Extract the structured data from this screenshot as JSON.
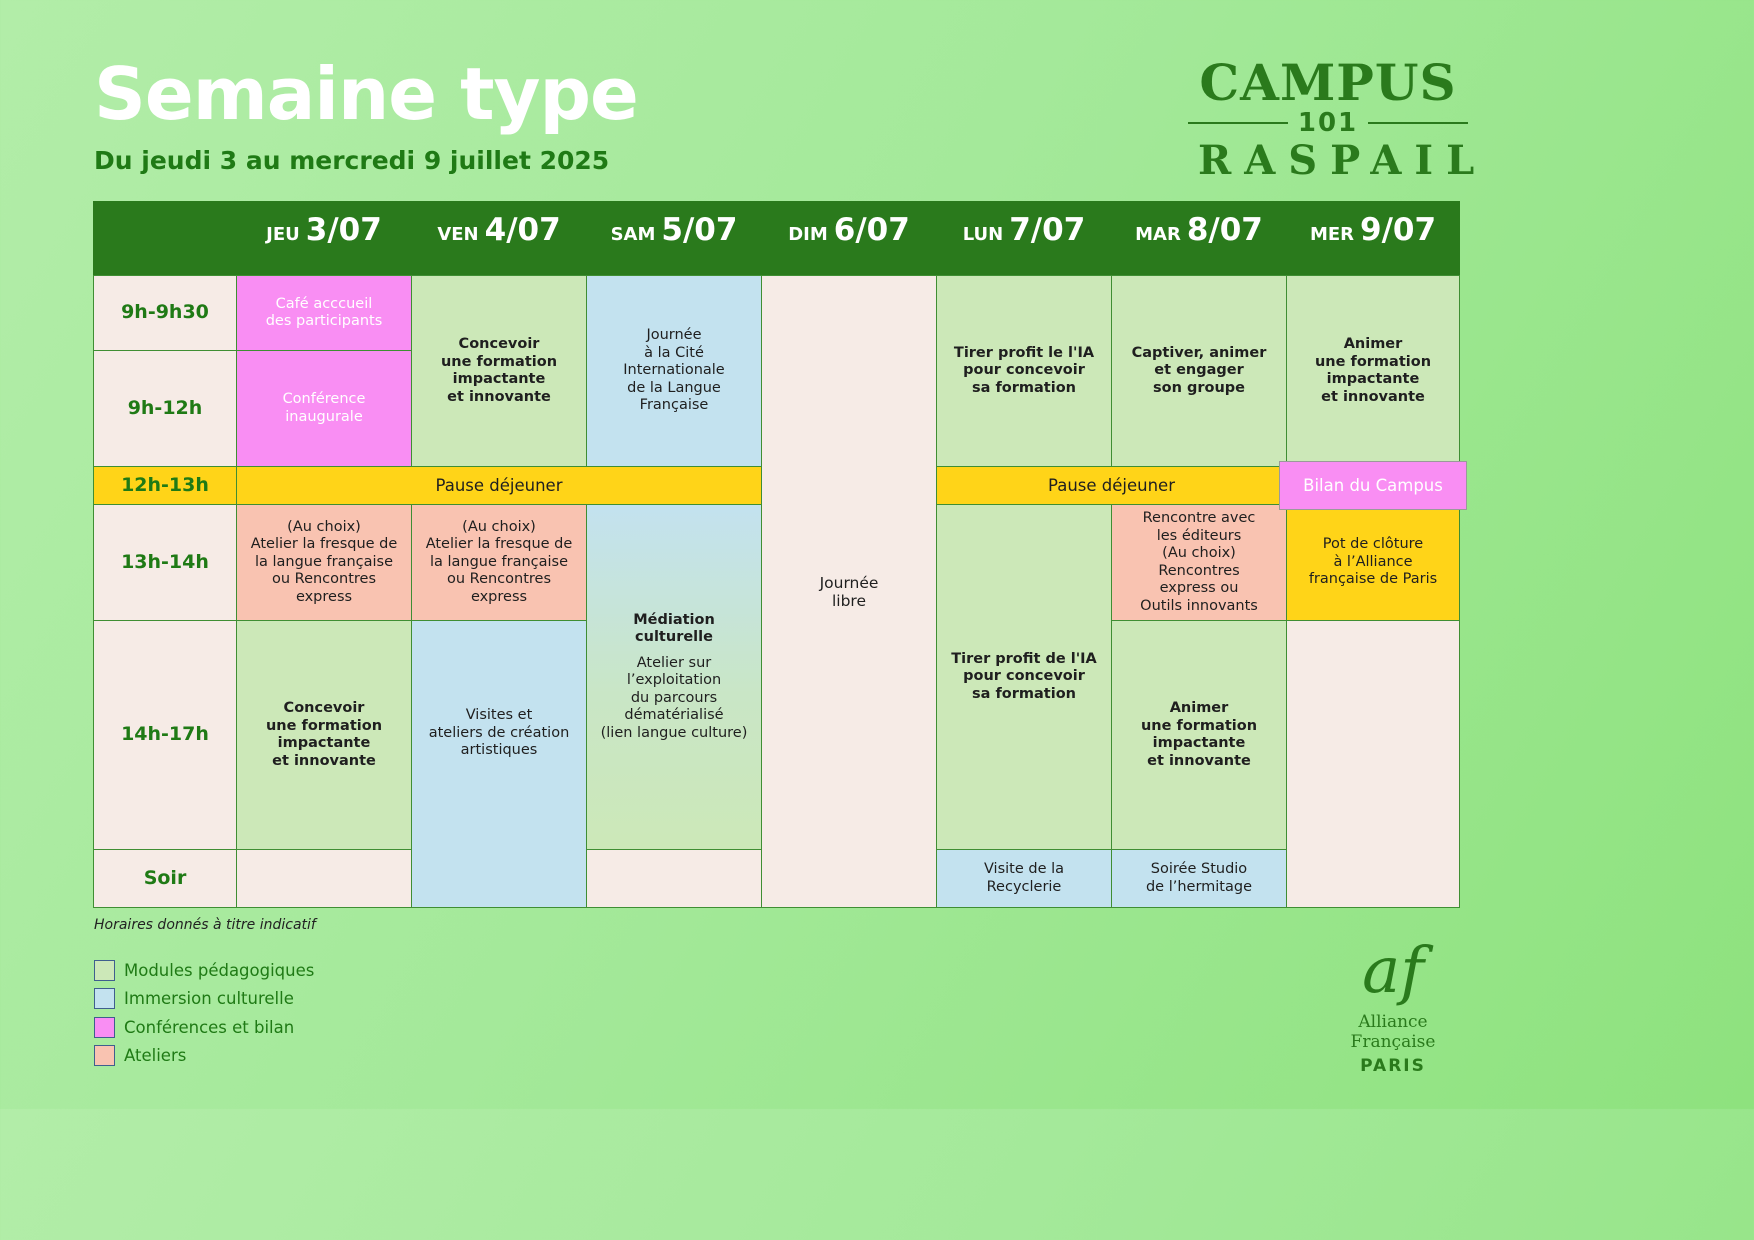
{
  "page": {
    "title": "Semaine type",
    "subtitle": "Du jeudi 3 au mercredi 9 juillet 2025",
    "note": "Horaires donnés à titre indicatif"
  },
  "logo": {
    "line1": "CAMPUS",
    "line2": "101",
    "line3": "RASPAIL"
  },
  "days": [
    {
      "abbr": "JEU",
      "date": "3/07"
    },
    {
      "abbr": "VEN",
      "date": "4/07"
    },
    {
      "abbr": "SAM",
      "date": "5/07"
    },
    {
      "abbr": "DIM",
      "date": "6/07"
    },
    {
      "abbr": "LUN",
      "date": "7/07"
    },
    {
      "abbr": "MAR",
      "date": "8/07"
    },
    {
      "abbr": "MER",
      "date": "9/07"
    }
  ],
  "times": [
    "9h-9h30",
    "9h-12h",
    "12h-13h",
    "13h-14h",
    "14h-17h",
    "Soir"
  ],
  "schedule": {
    "jeu_cafe": "Café acccueil\ndes participants",
    "jeu_conf": "Conférence\ninaugurale",
    "ven_am": "Concevoir\nune formation\nimpactante\net innovante",
    "sam_am": "Journée\nà la Cité\nInternationale\nde la Langue\nFrançaise",
    "dim_all": "Journée\nlibre",
    "lun_am": "Tirer profit le l'IA\npour concevoir\nsa formation",
    "mar_am": "Captiver, animer\net engager\nson groupe",
    "mer_am": "Animer\nune formation\nimpactante\net innovante",
    "pause_left": "Pause déjeuner",
    "pause_right": "Pause déjeuner",
    "bilan": "Bilan du Campus",
    "jeu_1314": "(Au choix)\nAtelier la fresque de\nla langue française\nou Rencontres\nexpress",
    "ven_1314": "(Au choix)\nAtelier la fresque de\nla langue française\nou Rencontres\nexpress",
    "sam_pm_title": "Médiation\nculturelle",
    "sam_pm_text": "Atelier sur\nl’exploitation\ndu parcours\ndématérialisé\n(lien langue culture)",
    "lun_pm": "Tirer profit de l'IA\npour concevoir\nsa formation",
    "mar_1314": "Rencontre avec\nles éditeurs\n(Au choix)\nRencontres\nexpress ou\nOutils innovants",
    "mer_1314": "Pot de clôture\nà l’Alliance\nfrançaise de Paris",
    "jeu_pm": "Concevoir\nune formation\nimpactante\net innovante",
    "ven_pm": "Visites et\nateliers de création\nartistiques",
    "mar_pm": "Animer\nune formation\nimpactante\net innovante",
    "lun_soir": "Visite de la\nRecyclerie",
    "mar_soir": "Soirée Studio\nde l’hermitage"
  },
  "legend": [
    {
      "label": "Modules pédagogiques",
      "color": "#cce8b8"
    },
    {
      "label": "Immersion culturelle",
      "color": "#c3e2ef"
    },
    {
      "label": "Conférences et bilan",
      "color": "#f98ef3"
    },
    {
      "label": "Ateliers",
      "color": "#f9c3b1"
    }
  ],
  "colors": {
    "module": "#cce8b8",
    "immersion": "#c3e2ef",
    "conference": "#f98ef3",
    "atelier": "#f9c3b1",
    "pause": "#ffd418",
    "header": "#2a7a1c",
    "empty": "#f6ebe6"
  },
  "af_logo": {
    "mark": "af",
    "line1": "Alliance Française",
    "line2": "PARIS"
  }
}
